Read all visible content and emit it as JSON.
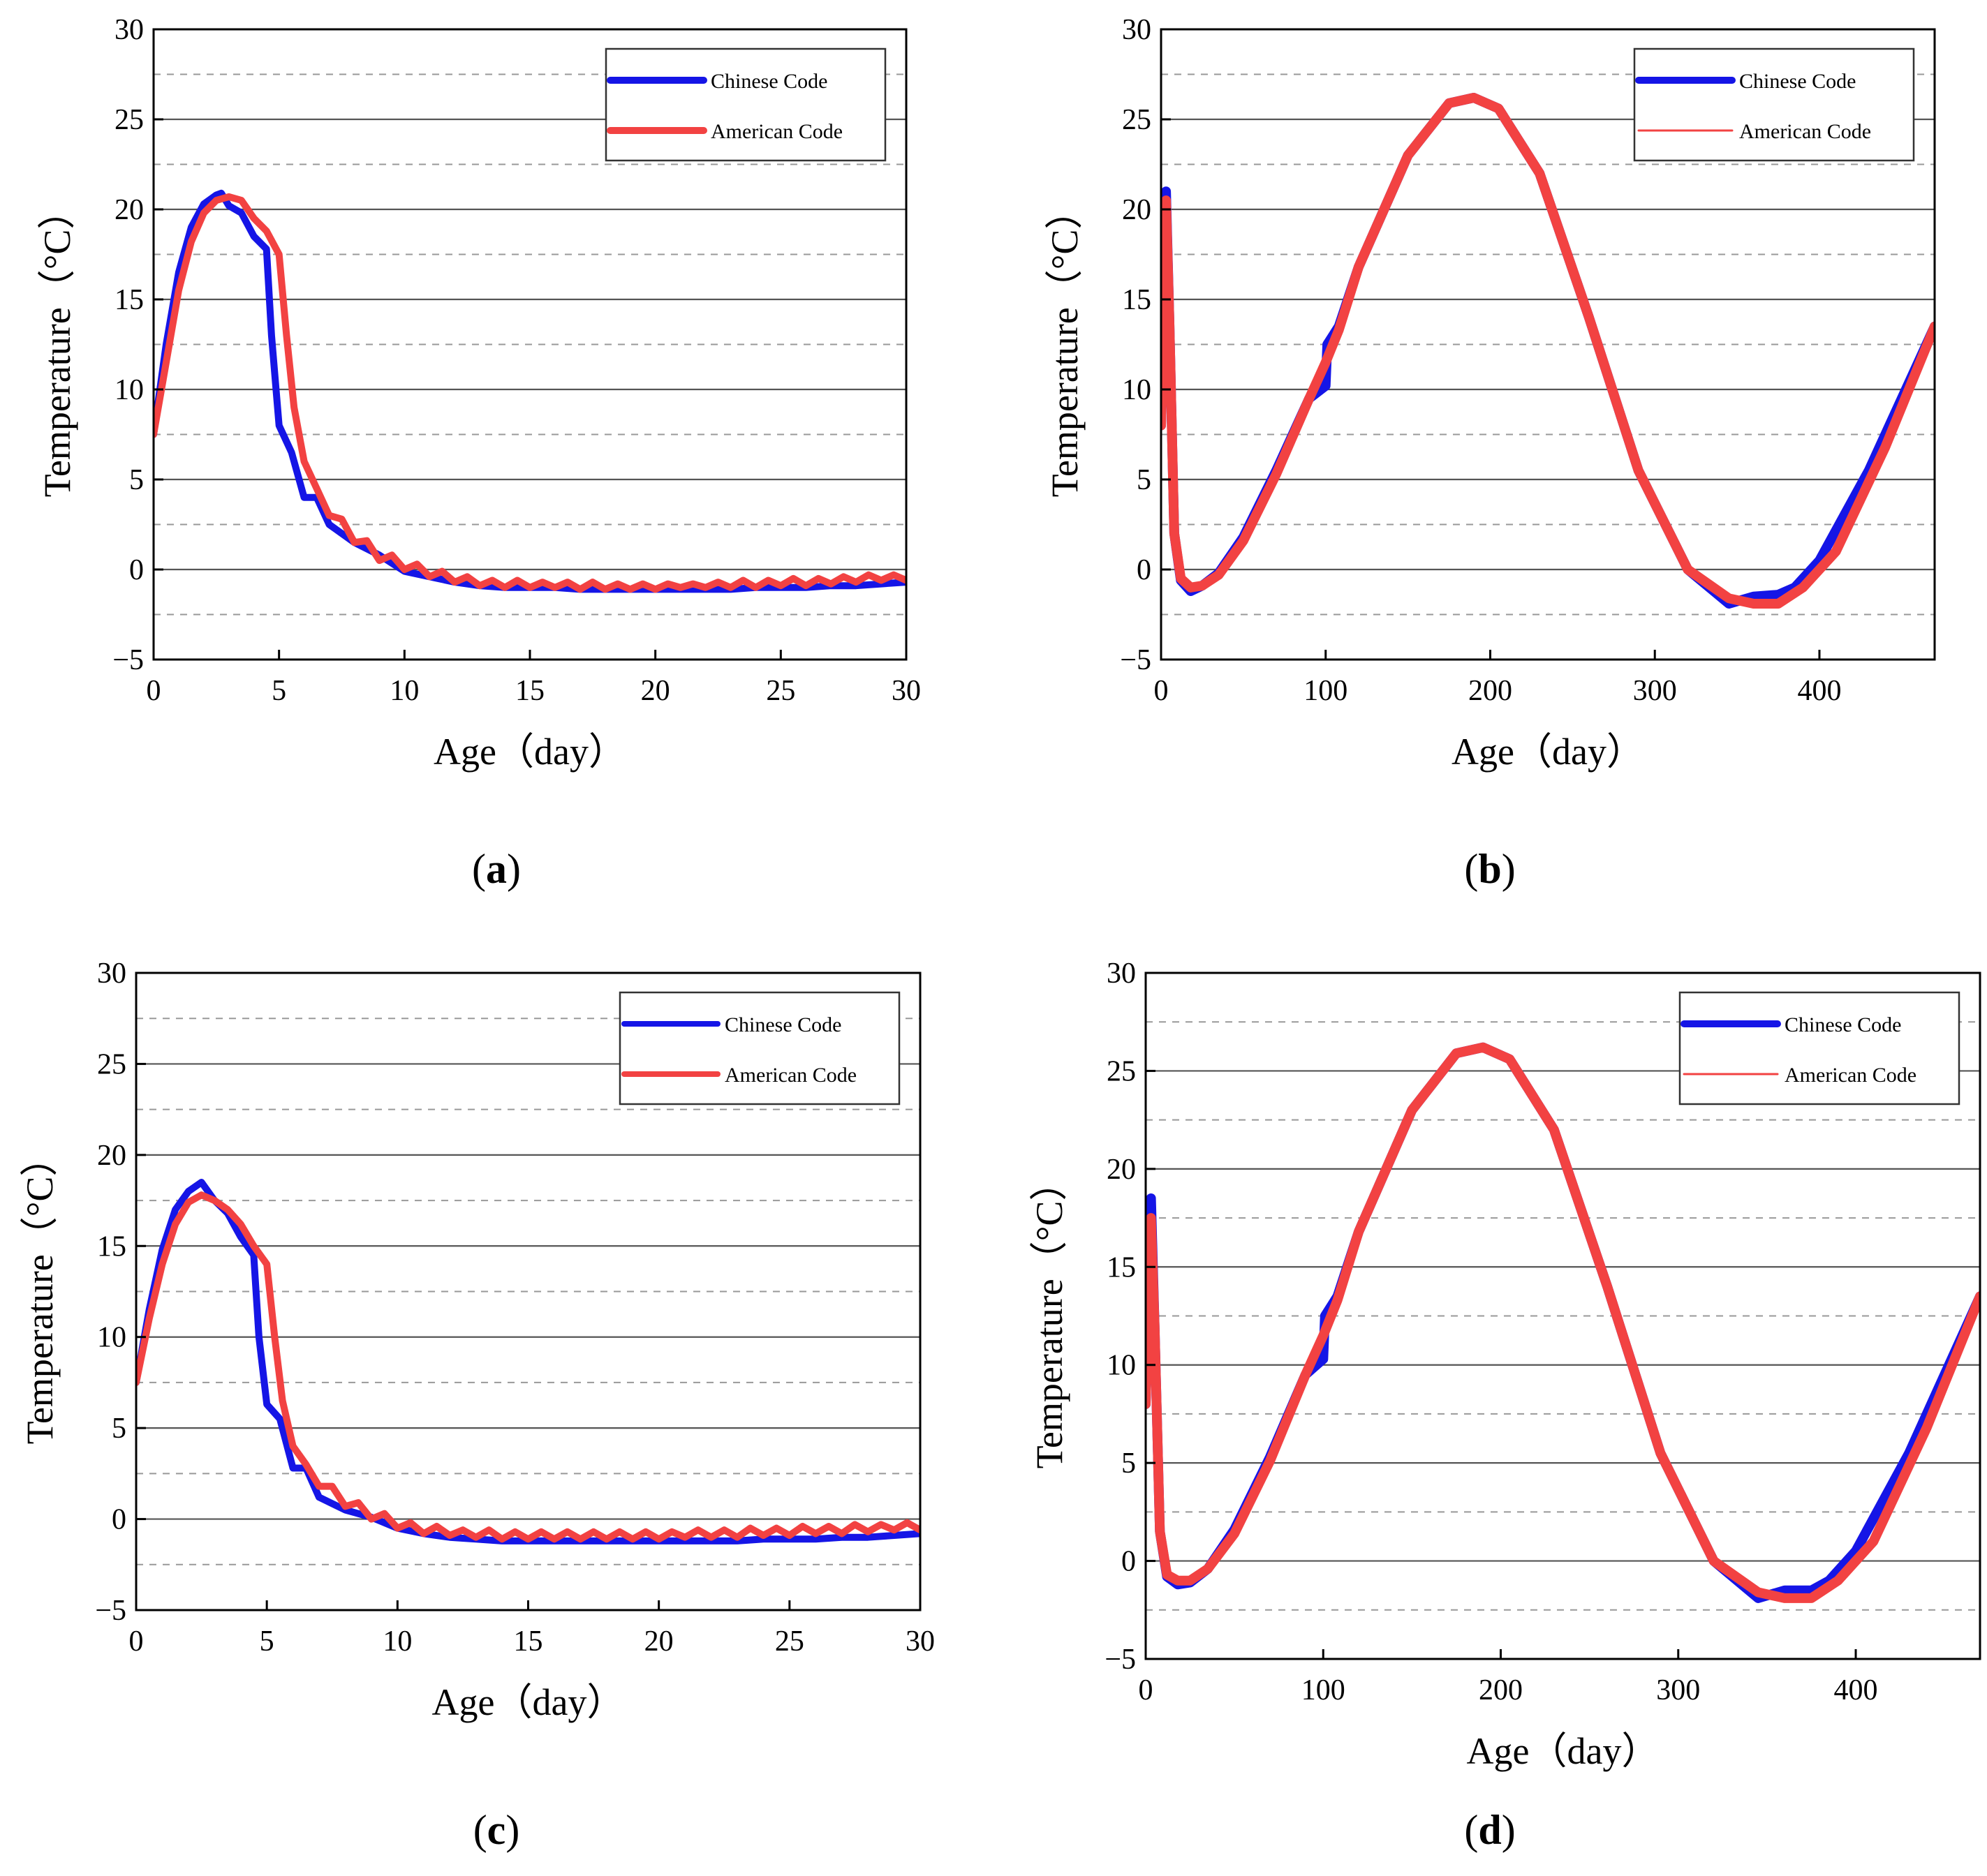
{
  "chart_data": [
    {
      "panel_label": "a",
      "type": "line",
      "xlabel": "Age（day）",
      "ylabel": "Temperature（°C）",
      "xlim": [
        0,
        30
      ],
      "ylim": [
        -5,
        30
      ],
      "xticks": [
        0,
        5,
        10,
        15,
        20,
        25,
        30
      ],
      "yticks": [
        -5,
        0,
        5,
        10,
        15,
        20,
        25,
        30
      ],
      "grid": "major solid, minor dashed",
      "legend_position": "top-right",
      "series": [
        {
          "name": "Chinese Code",
          "color": "#1515e6",
          "legend_line_width": 10,
          "x": [
            0,
            0.5,
            1,
            1.5,
            2,
            2.5,
            2.7,
            3,
            3.5,
            4,
            4.5,
            4.7,
            5,
            5.5,
            6,
            6.5,
            7,
            8,
            9,
            10,
            11,
            12,
            13,
            14,
            15,
            16,
            17,
            18,
            19,
            20,
            21,
            22,
            23,
            24,
            25,
            26,
            27,
            28,
            29,
            30
          ],
          "y": [
            7.5,
            12.5,
            16.5,
            19,
            20.3,
            20.8,
            20.9,
            20.2,
            19.8,
            18.5,
            17.8,
            13,
            8,
            6.5,
            4,
            4,
            2.5,
            1.5,
            0.8,
            -0.1,
            -0.4,
            -0.7,
            -0.9,
            -1.0,
            -1.0,
            -1.0,
            -1.1,
            -1.1,
            -1.1,
            -1.1,
            -1.1,
            -1.1,
            -1.1,
            -1.0,
            -1.0,
            -1.0,
            -0.9,
            -0.9,
            -0.8,
            -0.7
          ]
        },
        {
          "name": "American Code",
          "color": "#f24242",
          "legend_line_width": 10,
          "x": [
            0,
            0.5,
            1,
            1.5,
            2,
            2.5,
            3,
            3.5,
            4,
            4.5,
            5,
            5.3,
            5.6,
            6,
            6.5,
            7,
            7.5,
            8,
            8.5,
            9,
            9.5,
            10,
            10.5,
            11,
            11.5,
            12,
            12.5,
            13,
            13.5,
            14,
            14.5,
            15,
            15.5,
            16,
            16.5,
            17,
            17.5,
            18,
            18.5,
            19,
            19.5,
            20,
            20.5,
            21,
            21.5,
            22,
            22.5,
            23,
            23.5,
            24,
            24.5,
            25,
            25.5,
            26,
            26.5,
            27,
            27.5,
            28,
            28.5,
            29,
            29.5,
            30
          ],
          "y": [
            7.5,
            11.5,
            15.5,
            18.2,
            19.8,
            20.5,
            20.7,
            20.5,
            19.5,
            18.8,
            17.5,
            13,
            9,
            6,
            4.5,
            3.0,
            2.8,
            1.5,
            1.6,
            0.5,
            0.8,
            0.0,
            0.3,
            -0.4,
            -0.1,
            -0.7,
            -0.4,
            -0.9,
            -0.6,
            -1.0,
            -0.6,
            -1.0,
            -0.7,
            -1.0,
            -0.7,
            -1.1,
            -0.7,
            -1.1,
            -0.8,
            -1.1,
            -0.8,
            -1.1,
            -0.8,
            -1.0,
            -0.8,
            -1.0,
            -0.7,
            -1.0,
            -0.6,
            -1.0,
            -0.6,
            -0.9,
            -0.5,
            -0.9,
            -0.5,
            -0.8,
            -0.4,
            -0.7,
            -0.3,
            -0.6,
            -0.3,
            -0.6
          ]
        }
      ]
    },
    {
      "panel_label": "b",
      "type": "line",
      "xlabel": "Age（day）",
      "ylabel": "Temperature（°C）",
      "xlim": [
        0,
        470
      ],
      "ylim": [
        -5,
        30
      ],
      "xticks": [
        0,
        100,
        200,
        300,
        400
      ],
      "yticks": [
        -5,
        0,
        5,
        10,
        15,
        20,
        25,
        30
      ],
      "grid": "major solid, minor dashed",
      "legend_position": "top-right",
      "series": [
        {
          "name": "Chinese Code",
          "color": "#1515e6",
          "legend_line_width": 10,
          "x": [
            0,
            3,
            5,
            8,
            12,
            18,
            25,
            35,
            50,
            70,
            90,
            100,
            101,
            108,
            120,
            150,
            175,
            190,
            205,
            230,
            260,
            290,
            320,
            345,
            360,
            375,
            385,
            400,
            430,
            470
          ],
          "y": [
            8,
            21,
            14,
            2,
            -0.6,
            -1.2,
            -0.9,
            -0.2,
            1.8,
            5.5,
            9.5,
            10.2,
            12.5,
            13.5,
            16.8,
            23,
            25.9,
            26.2,
            25.6,
            22,
            14,
            5.5,
            0,
            -1.9,
            -1.5,
            -1.4,
            -1.0,
            0.5,
            5.5,
            13.5
          ]
        },
        {
          "name": "American Code",
          "color": "#f24242",
          "legend_line_width": 3,
          "x": [
            0,
            3,
            5,
            8,
            12,
            18,
            25,
            35,
            50,
            70,
            90,
            95,
            100,
            108,
            120,
            150,
            175,
            190,
            205,
            230,
            260,
            290,
            320,
            345,
            360,
            375,
            390,
            410,
            440,
            470
          ],
          "y": [
            8,
            20.5,
            14,
            2,
            -0.5,
            -1.0,
            -0.9,
            -0.3,
            1.6,
            5.3,
            9.5,
            10.5,
            11.5,
            13.3,
            16.8,
            23,
            25.9,
            26.2,
            25.6,
            22,
            14,
            5.5,
            0,
            -1.6,
            -1.9,
            -1.9,
            -1.0,
            1.0,
            6.8,
            13.5
          ]
        }
      ]
    },
    {
      "panel_label": "c",
      "type": "line",
      "xlabel": "Age（day）",
      "ylabel": "Temperature（°C）",
      "xlim": [
        0,
        30
      ],
      "ylim": [
        -5,
        30
      ],
      "xticks": [
        0,
        5,
        10,
        15,
        20,
        25,
        30
      ],
      "yticks": [
        -5,
        0,
        5,
        10,
        15,
        20,
        25,
        30
      ],
      "grid": "major solid, minor dashed",
      "legend_position": "top-right",
      "series": [
        {
          "name": "Chinese Code",
          "color": "#1515e6",
          "legend_line_width": 8,
          "x": [
            0,
            0.5,
            1,
            1.5,
            2,
            2.5,
            3,
            3.5,
            4,
            4.5,
            4.7,
            5,
            5.5,
            6,
            6.5,
            7,
            8,
            9,
            10,
            11,
            12,
            13,
            14,
            15,
            16,
            17,
            18,
            19,
            20,
            21,
            22,
            23,
            24,
            25,
            26,
            27,
            28,
            29,
            30
          ],
          "y": [
            7.5,
            11.5,
            14.8,
            17,
            18,
            18.5,
            17.5,
            16.8,
            15.5,
            14.5,
            10,
            6.3,
            5.5,
            2.8,
            2.8,
            1.2,
            0.5,
            0.1,
            -0.5,
            -0.8,
            -1.0,
            -1.1,
            -1.2,
            -1.2,
            -1.2,
            -1.2,
            -1.2,
            -1.2,
            -1.2,
            -1.2,
            -1.2,
            -1.2,
            -1.1,
            -1.1,
            -1.1,
            -1.0,
            -1.0,
            -0.9,
            -0.8
          ]
        },
        {
          "name": "American Code",
          "color": "#f24242",
          "legend_line_width": 8,
          "x": [
            0,
            0.5,
            1,
            1.5,
            2,
            2.5,
            3,
            3.5,
            4,
            4.5,
            5,
            5.3,
            5.6,
            6,
            6.5,
            7,
            7.5,
            8,
            8.5,
            9,
            9.5,
            10,
            10.5,
            11,
            11.5,
            12,
            12.5,
            13,
            13.5,
            14,
            14.5,
            15,
            15.5,
            16,
            16.5,
            17,
            17.5,
            18,
            18.5,
            19,
            19.5,
            20,
            20.5,
            21,
            21.5,
            22,
            22.5,
            23,
            23.5,
            24,
            24.5,
            25,
            25.5,
            26,
            26.5,
            27,
            27.5,
            28,
            28.5,
            29,
            29.5,
            30
          ],
          "y": [
            7.5,
            11,
            14,
            16.2,
            17.4,
            17.8,
            17.5,
            17.0,
            16.2,
            15.0,
            14.0,
            10,
            6.5,
            4.0,
            3.0,
            1.8,
            1.8,
            0.7,
            0.9,
            0.0,
            0.3,
            -0.5,
            -0.2,
            -0.8,
            -0.4,
            -0.9,
            -0.6,
            -1.0,
            -0.6,
            -1.1,
            -0.7,
            -1.1,
            -0.7,
            -1.1,
            -0.7,
            -1.1,
            -0.7,
            -1.1,
            -0.7,
            -1.1,
            -0.7,
            -1.1,
            -0.7,
            -1.0,
            -0.6,
            -1.0,
            -0.6,
            -1.0,
            -0.5,
            -0.9,
            -0.5,
            -0.9,
            -0.4,
            -0.8,
            -0.4,
            -0.8,
            -0.3,
            -0.7,
            -0.3,
            -0.6,
            -0.2,
            -0.6
          ]
        }
      ]
    },
    {
      "panel_label": "d",
      "type": "line",
      "xlabel": "Age（day）",
      "ylabel": "Temperature（°C）",
      "xlim": [
        0,
        470
      ],
      "ylim": [
        -5,
        30
      ],
      "xticks": [
        0,
        100,
        200,
        300,
        400
      ],
      "yticks": [
        -5,
        0,
        5,
        10,
        15,
        20,
        25,
        30
      ],
      "grid": "major solid, minor dashed",
      "legend_position": "top-right",
      "series": [
        {
          "name": "Chinese Code",
          "color": "#1515e6",
          "legend_line_width": 10,
          "x": [
            0,
            3,
            5,
            8,
            12,
            18,
            25,
            35,
            50,
            70,
            90,
            100,
            101,
            108,
            120,
            150,
            175,
            190,
            205,
            230,
            260,
            290,
            320,
            345,
            360,
            375,
            385,
            400,
            430,
            470
          ],
          "y": [
            8,
            18.5,
            12,
            1.5,
            -0.8,
            -1.2,
            -1.1,
            -0.4,
            1.6,
            5.3,
            9.5,
            10.3,
            12.5,
            13.5,
            16.8,
            23,
            25.9,
            26.2,
            25.6,
            22,
            14,
            5.5,
            0,
            -1.9,
            -1.5,
            -1.5,
            -1.0,
            0.5,
            5.5,
            13.5
          ]
        },
        {
          "name": "American Code",
          "color": "#f24242",
          "legend_line_width": 3,
          "x": [
            0,
            3,
            5,
            8,
            12,
            18,
            25,
            35,
            50,
            70,
            90,
            95,
            100,
            108,
            120,
            150,
            175,
            190,
            205,
            230,
            260,
            290,
            320,
            345,
            360,
            375,
            390,
            410,
            440,
            470
          ],
          "y": [
            8,
            17.5,
            12,
            1.5,
            -0.7,
            -1.0,
            -1.0,
            -0.4,
            1.4,
            5.1,
            9.5,
            10.5,
            11.5,
            13.3,
            16.8,
            23,
            25.9,
            26.2,
            25.6,
            22,
            14,
            5.5,
            0,
            -1.6,
            -1.9,
            -1.9,
            -1.0,
            1.0,
            6.8,
            13.5
          ]
        }
      ]
    }
  ]
}
